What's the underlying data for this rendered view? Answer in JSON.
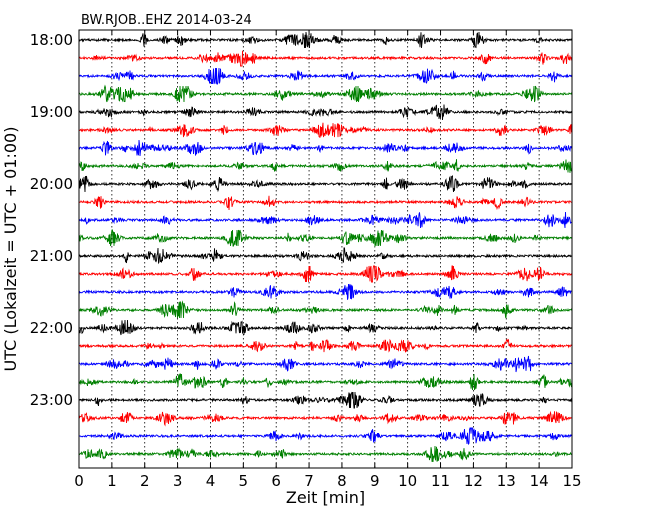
{
  "chart_data": {
    "type": "line",
    "title": "BW.RJOB..EHZ 2014-03-24",
    "xlabel": "Zeit  [min]",
    "ylabel": "UTC (Lokalzeit = UTC + 01:00)",
    "xlim": [
      0,
      15
    ],
    "x_ticks": [
      0,
      1,
      2,
      3,
      4,
      5,
      6,
      7,
      8,
      9,
      10,
      11,
      12,
      13,
      14,
      15
    ],
    "x_tick_labels": [
      "0",
      "1",
      "2",
      "3",
      "4",
      "5",
      "6",
      "7",
      "8",
      "9",
      "10",
      "11",
      "12",
      "13",
      "14",
      "15"
    ],
    "y_tick_labels": [
      "18:00",
      "19:00",
      "20:00",
      "21:00",
      "22:00",
      "23:00"
    ],
    "y_tick_trace_index": [
      0,
      4,
      8,
      12,
      16,
      20
    ],
    "trace_colors": [
      "#000000",
      "#ff0000",
      "#0000ff",
      "#008000"
    ],
    "traces": [
      {
        "start": "18:00",
        "color_index": 0
      },
      {
        "start": "18:15",
        "color_index": 1
      },
      {
        "start": "18:30",
        "color_index": 2
      },
      {
        "start": "18:45",
        "color_index": 3
      },
      {
        "start": "19:00",
        "color_index": 0
      },
      {
        "start": "19:15",
        "color_index": 1
      },
      {
        "start": "19:30",
        "color_index": 2
      },
      {
        "start": "19:45",
        "color_index": 3
      },
      {
        "start": "20:00",
        "color_index": 0
      },
      {
        "start": "20:15",
        "color_index": 1
      },
      {
        "start": "20:30",
        "color_index": 2
      },
      {
        "start": "20:45",
        "color_index": 3
      },
      {
        "start": "21:00",
        "color_index": 0
      },
      {
        "start": "21:15",
        "color_index": 1
      },
      {
        "start": "21:30",
        "color_index": 2
      },
      {
        "start": "21:45",
        "color_index": 3
      },
      {
        "start": "22:00",
        "color_index": 0
      },
      {
        "start": "22:15",
        "color_index": 1
      },
      {
        "start": "22:30",
        "color_index": 2
      },
      {
        "start": "22:45",
        "color_index": 3
      },
      {
        "start": "23:00",
        "color_index": 0
      },
      {
        "start": "23:15",
        "color_index": 1
      },
      {
        "start": "23:30",
        "color_index": 2
      },
      {
        "start": "23:45",
        "color_index": 3
      }
    ],
    "vertical_grid": "dotted",
    "legend": "none"
  }
}
